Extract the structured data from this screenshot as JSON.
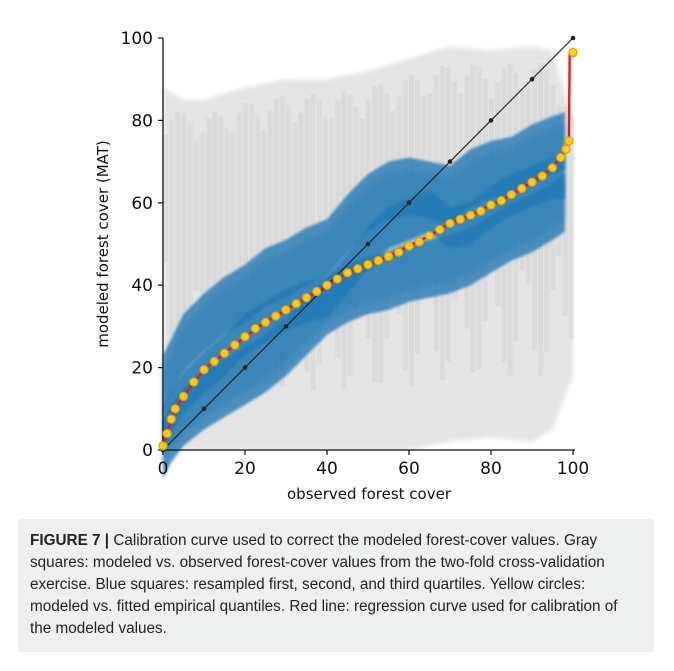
{
  "chart_data": {
    "type": "scatter",
    "xlabel": "observed forest cover",
    "ylabel": "modeled forest cover (MAT)",
    "xlim": [
      0,
      100
    ],
    "ylim": [
      0,
      100
    ],
    "x_ticks": [
      "0",
      "20",
      "40",
      "60",
      "80",
      "100"
    ],
    "y_ticks": [
      "0",
      "20",
      "40",
      "60",
      "80",
      "100"
    ],
    "grid": false,
    "colors": {
      "gray_squares": "#d9d9d9",
      "blue_squares": "#1f77b4",
      "circles_fill": "#ffd21a",
      "circles_edge": "#e8a000",
      "regression_line": "#e41a1c",
      "identity_line": "#222222"
    },
    "identity_line": {
      "x": [
        0,
        100
      ],
      "y": [
        0,
        100
      ],
      "markers": [
        0,
        10,
        20,
        30,
        40,
        50,
        60,
        70,
        80,
        90,
        100
      ]
    },
    "gray_band": {
      "x": [
        0,
        5,
        10,
        20,
        30,
        40,
        50,
        60,
        70,
        80,
        90,
        95,
        100
      ],
      "lower": [
        0,
        0,
        0,
        0,
        0,
        0,
        0,
        0,
        2,
        3,
        2,
        5,
        18
      ],
      "upper": [
        88,
        85,
        85,
        88,
        90,
        90,
        92,
        95,
        98,
        97,
        98,
        97,
        80
      ]
    },
    "quartiles": {
      "x": [
        0,
        2,
        5,
        10,
        15,
        20,
        25,
        30,
        35,
        40,
        45,
        50,
        55,
        60,
        65,
        70,
        75,
        80,
        85,
        90,
        95,
        98
      ],
      "q1": [
        0,
        4,
        8,
        12,
        15,
        18,
        21,
        25,
        30,
        35,
        38,
        40,
        41,
        43,
        44,
        45,
        47,
        50,
        53,
        55,
        58,
        60
      ],
      "q2": [
        5,
        9,
        14,
        19,
        23,
        28,
        31,
        34,
        36,
        37,
        43,
        49,
        54,
        56,
        58,
        54,
        55,
        59,
        62,
        64,
        66,
        66
      ],
      "q3": [
        16,
        20,
        26,
        31,
        35,
        38,
        42,
        44,
        47,
        49,
        55,
        60,
        63,
        64,
        63,
        62,
        66,
        68,
        69,
        72,
        74,
        75
      ]
    },
    "fitted_quantiles": {
      "x": [
        0,
        1,
        2,
        3,
        5,
        7.5,
        10,
        12.5,
        15,
        17.5,
        20,
        22.5,
        25,
        27.5,
        30,
        32.5,
        35,
        37.5,
        40,
        42.5,
        45,
        47.5,
        50,
        52.5,
        55,
        57.5,
        60,
        62.5,
        65,
        67.5,
        70,
        72.5,
        75,
        77.5,
        80,
        82.5,
        85,
        87.5,
        90,
        92.5,
        95,
        97,
        98.3,
        99,
        100
      ],
      "y": [
        1,
        4,
        7.5,
        10,
        13,
        16.5,
        19.5,
        21.5,
        23.5,
        25.5,
        27.5,
        29.5,
        31,
        32.5,
        34,
        35.5,
        37,
        38.5,
        40,
        41.5,
        43,
        44,
        45,
        46,
        47,
        48,
        49.5,
        50.5,
        52,
        53.5,
        55,
        56,
        57,
        58,
        59.5,
        60.5,
        62,
        63.5,
        65,
        66.5,
        68.5,
        71,
        73,
        75,
        96.5
      ]
    },
    "regression_curve": {
      "x": [
        0,
        1,
        2,
        3,
        5,
        7.5,
        10,
        15,
        20,
        25,
        30,
        35,
        40,
        45,
        50,
        55,
        60,
        65,
        70,
        75,
        80,
        85,
        90,
        95,
        97,
        99,
        99.2,
        100
      ],
      "y": [
        0.5,
        4,
        7.5,
        10,
        13,
        16.5,
        19.5,
        23.5,
        27.5,
        31,
        34,
        37,
        40,
        43,
        45,
        47,
        49.5,
        52,
        55,
        57,
        59.5,
        62,
        65,
        68.5,
        71,
        75,
        96.5,
        96.8
      ]
    }
  },
  "caption": {
    "label": "FIGURE 7 |",
    "text": " Calibration curve used to correct the modeled forest-cover values. Gray squares: modeled vs. observed forest-cover values from the two-fold cross-validation exercise. Blue squares: resampled first, second, and third quartiles. Yellow circles: modeled vs. fitted empirical quantiles. Red line: regression curve used for calibration of the modeled values."
  }
}
